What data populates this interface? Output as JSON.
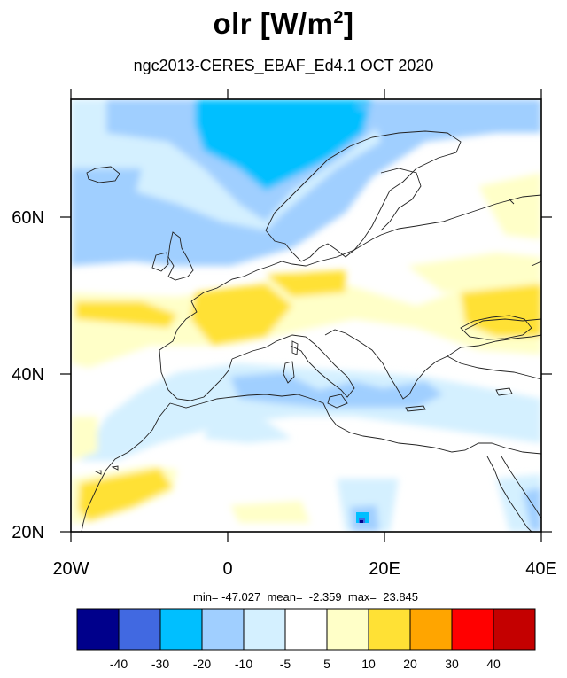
{
  "title": {
    "main": "olr [W/m",
    "sup": "2",
    "close": "]"
  },
  "subtitle": "ngc2013-CERES_EBAF_Ed4.1  OCT 2020",
  "stats": {
    "text": "min= -47.027  mean=  -2.359  max=  23.845"
  },
  "map": {
    "lon_range": [
      -20,
      40
    ],
    "lat_range": [
      20,
      75
    ],
    "lon_labels": [
      "20W",
      "0",
      "20E",
      "40E"
    ],
    "lat_labels": [
      "20N",
      "40N",
      "60N"
    ]
  },
  "colorbar": {
    "colors": [
      "#00008b",
      "#4169e1",
      "#00bfff",
      "#a0cfff",
      "#d4f0ff",
      "#ffffff",
      "#ffffc8",
      "#ffe135",
      "#ffa500",
      "#ff0000",
      "#c40000"
    ],
    "labels": [
      "-40",
      "-30",
      "-20",
      "-10",
      "-5",
      "5",
      "10",
      "20",
      "30",
      "40"
    ]
  }
}
